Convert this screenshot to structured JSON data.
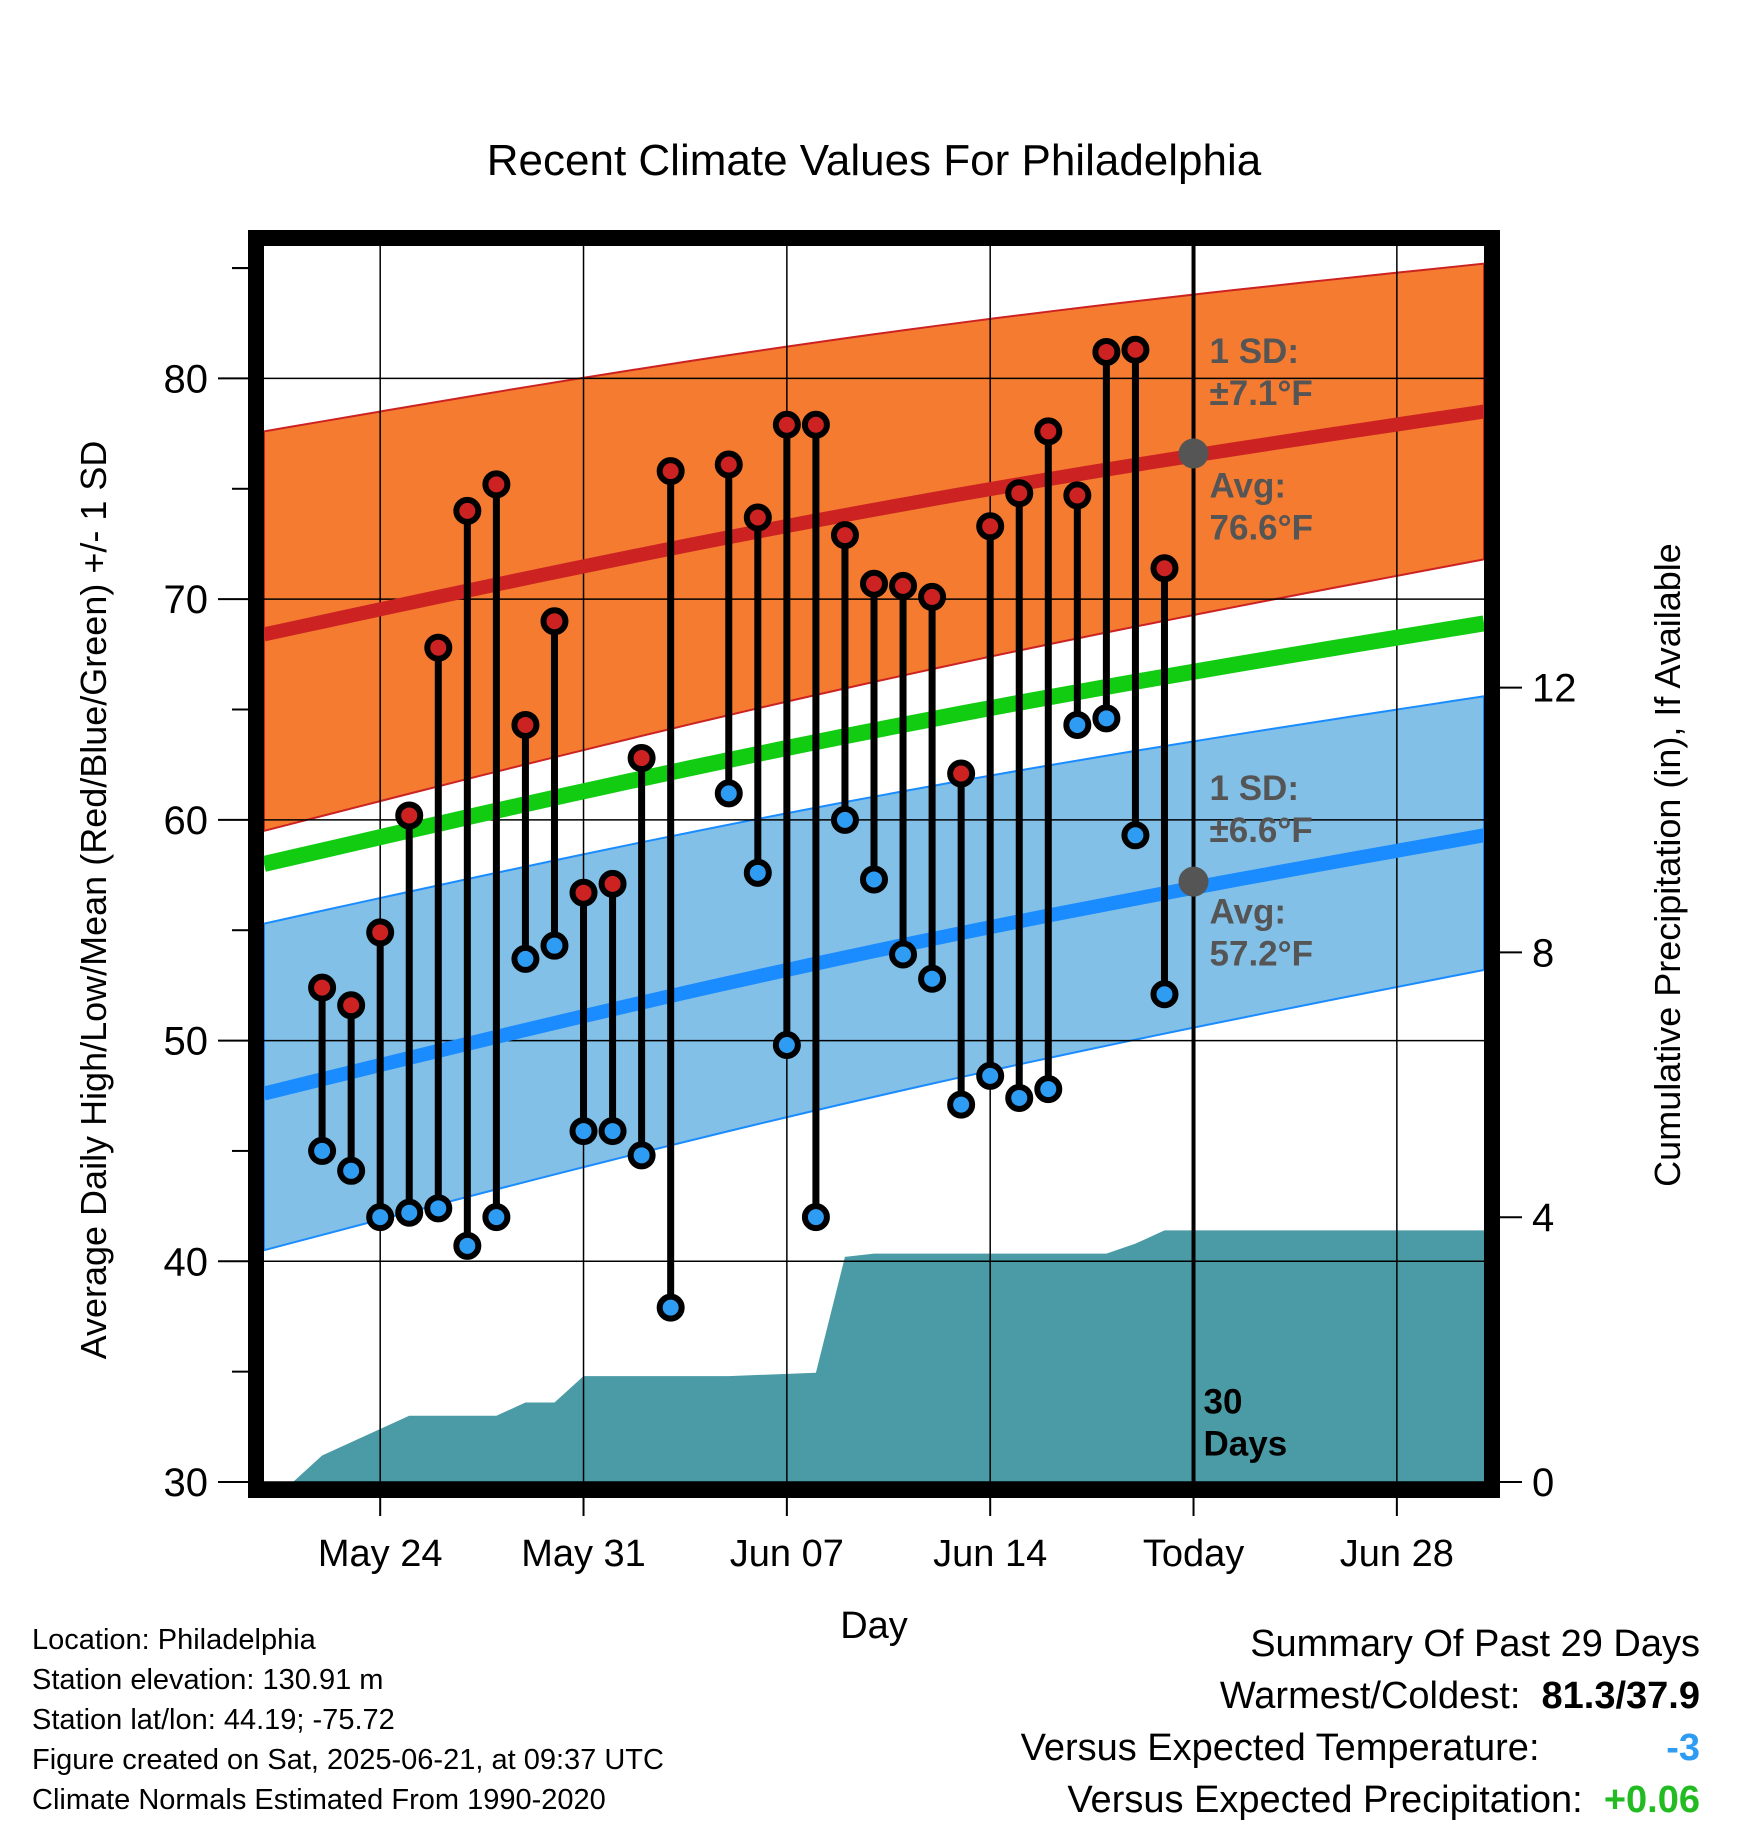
{
  "chart_data": {
    "type": "line",
    "title": "Recent Climate Values For Philadelphia",
    "xlabel": "Day",
    "ylabel": "Average Daily High/Low/Mean (Red/Blue/Green) +/- 1 SD",
    "y2label": "Cumulative Precipitation (in), If Available",
    "ylim": [
      30,
      86
    ],
    "y2lim": [
      0,
      18.67
    ],
    "yticks": [
      "30",
      "40",
      "50",
      "60",
      "70",
      "80"
    ],
    "y2ticks": [
      "0",
      "4",
      "8",
      "12"
    ],
    "xrange": [
      "2025-05-20",
      "2025-07-01"
    ],
    "xticks": [
      {
        "date": "2025-05-24",
        "label": "May 24"
      },
      {
        "date": "2025-05-31",
        "label": "May 31"
      },
      {
        "date": "2025-06-07",
        "label": "Jun 07"
      },
      {
        "date": "2025-06-14",
        "label": "Jun 14"
      },
      {
        "date": "2025-06-21",
        "label": "Today"
      },
      {
        "date": "2025-06-28",
        "label": "Jun 28"
      }
    ],
    "grid": true,
    "today": "2025-06-21",
    "today_label": [
      "30",
      "Days"
    ],
    "normals": {
      "high_avg": {
        "start": 68.4,
        "end": 78.5,
        "color": "#cc2222"
      },
      "high_sd_band": {
        "start": [
          59.5,
          77.6
        ],
        "end": [
          71.8,
          85.2
        ],
        "color": "#f47b30"
      },
      "low_avg": {
        "start": 47.6,
        "end": 59.3,
        "color": "#1a8cff"
      },
      "low_sd_band": {
        "start": [
          40.5,
          55.3
        ],
        "end": [
          53.2,
          65.6
        ],
        "color": "#82c0e8"
      },
      "mean_avg": {
        "start": 58.0,
        "end": 68.9,
        "color": "#11cc11"
      }
    },
    "annotations": {
      "high_sd": [
        "1 SD:",
        "±7.1°F"
      ],
      "high_avg": [
        "Avg:",
        "76.6°F"
      ],
      "low_sd": [
        "1 SD:",
        "±6.6°F"
      ],
      "low_avg": [
        "Avg:",
        "57.2°F"
      ],
      "high_today_value": 76.6,
      "low_today_value": 57.2
    },
    "series": [
      {
        "name": "High",
        "color": "#cc2222",
        "points": [
          [
            "2025-05-22",
            52.4
          ],
          [
            "2025-05-23",
            51.6
          ],
          [
            "2025-05-24",
            54.9
          ],
          [
            "2025-05-25",
            60.2
          ],
          [
            "2025-05-26",
            67.8
          ],
          [
            "2025-05-27",
            74.0
          ],
          [
            "2025-05-28",
            75.2
          ],
          [
            "2025-05-29",
            64.3
          ],
          [
            "2025-05-30",
            69.0
          ],
          [
            "2025-05-31",
            56.7
          ],
          [
            "2025-06-01",
            57.1
          ],
          [
            "2025-06-02",
            62.8
          ],
          [
            "2025-06-03",
            75.8
          ],
          [
            "2025-06-05",
            76.1
          ],
          [
            "2025-06-06",
            73.7
          ],
          [
            "2025-06-07",
            77.9
          ],
          [
            "2025-06-08",
            77.9
          ],
          [
            "2025-06-09",
            72.9
          ],
          [
            "2025-06-10",
            70.7
          ],
          [
            "2025-06-11",
            70.6
          ],
          [
            "2025-06-12",
            70.1
          ],
          [
            "2025-06-13",
            62.1
          ],
          [
            "2025-06-14",
            73.3
          ],
          [
            "2025-06-15",
            74.8
          ],
          [
            "2025-06-16",
            77.6
          ],
          [
            "2025-06-17",
            74.7
          ],
          [
            "2025-06-18",
            81.2
          ],
          [
            "2025-06-19",
            81.3
          ],
          [
            "2025-06-20",
            71.4
          ]
        ]
      },
      {
        "name": "Low",
        "color": "#2e9cf2",
        "points": [
          [
            "2025-05-22",
            45.0
          ],
          [
            "2025-05-23",
            44.1
          ],
          [
            "2025-05-24",
            42.0
          ],
          [
            "2025-05-25",
            42.2
          ],
          [
            "2025-05-26",
            42.4
          ],
          [
            "2025-05-27",
            40.7
          ],
          [
            "2025-05-28",
            42.0
          ],
          [
            "2025-05-29",
            53.7
          ],
          [
            "2025-05-30",
            54.3
          ],
          [
            "2025-05-31",
            45.9
          ],
          [
            "2025-06-01",
            45.9
          ],
          [
            "2025-06-02",
            44.8
          ],
          [
            "2025-06-03",
            37.9
          ],
          [
            "2025-06-05",
            61.2
          ],
          [
            "2025-06-06",
            57.6
          ],
          [
            "2025-06-07",
            49.8
          ],
          [
            "2025-06-08",
            42.0
          ],
          [
            "2025-06-09",
            60.0
          ],
          [
            "2025-06-10",
            57.3
          ],
          [
            "2025-06-11",
            53.9
          ],
          [
            "2025-06-12",
            52.8
          ],
          [
            "2025-06-13",
            47.1
          ],
          [
            "2025-06-14",
            48.4
          ],
          [
            "2025-06-15",
            47.4
          ],
          [
            "2025-06-16",
            47.8
          ],
          [
            "2025-06-17",
            64.3
          ],
          [
            "2025-06-18",
            64.6
          ],
          [
            "2025-06-19",
            59.3
          ],
          [
            "2025-06-20",
            52.1
          ]
        ]
      },
      {
        "name": "Cumulative Precipitation",
        "type": "area",
        "axis": "y2",
        "color": "#4a9ba5",
        "points": [
          [
            "2025-05-21",
            0.0
          ],
          [
            "2025-05-22",
            0.4
          ],
          [
            "2025-05-23",
            0.6
          ],
          [
            "2025-05-24",
            0.8
          ],
          [
            "2025-05-25",
            1.0
          ],
          [
            "2025-05-28",
            1.0
          ],
          [
            "2025-05-29",
            1.2
          ],
          [
            "2025-05-30",
            1.2
          ],
          [
            "2025-05-31",
            1.6
          ],
          [
            "2025-06-05",
            1.6
          ],
          [
            "2025-06-08",
            1.65
          ],
          [
            "2025-06-09",
            3.4
          ],
          [
            "2025-06-10",
            3.45
          ],
          [
            "2025-06-18",
            3.45
          ],
          [
            "2025-06-19",
            3.6
          ],
          [
            "2025-06-20",
            3.8
          ],
          [
            "2025-07-01",
            3.8
          ]
        ]
      }
    ]
  },
  "footer": {
    "location": "Location: Philadelphia",
    "elevation": "Station elevation: 130.91 m",
    "latlon": "Station lat/lon: 44.19; -75.72",
    "created": "Figure created on Sat, 2025-06-21, at 09:37 UTC",
    "normals": "Climate Normals Estimated From 1990-2020"
  },
  "summary": {
    "title": "Summary Of Past 29 Days",
    "warmest_label": "Warmest/Coldest:",
    "warmest_value": "81.3/37.9",
    "temp_label": "Versus Expected Temperature:",
    "temp_value": "-3",
    "temp_color": "#2e9cf2",
    "precip_label": "Versus Expected Precipitation:",
    "precip_value": "+0.06",
    "precip_color": "#22bb22"
  }
}
